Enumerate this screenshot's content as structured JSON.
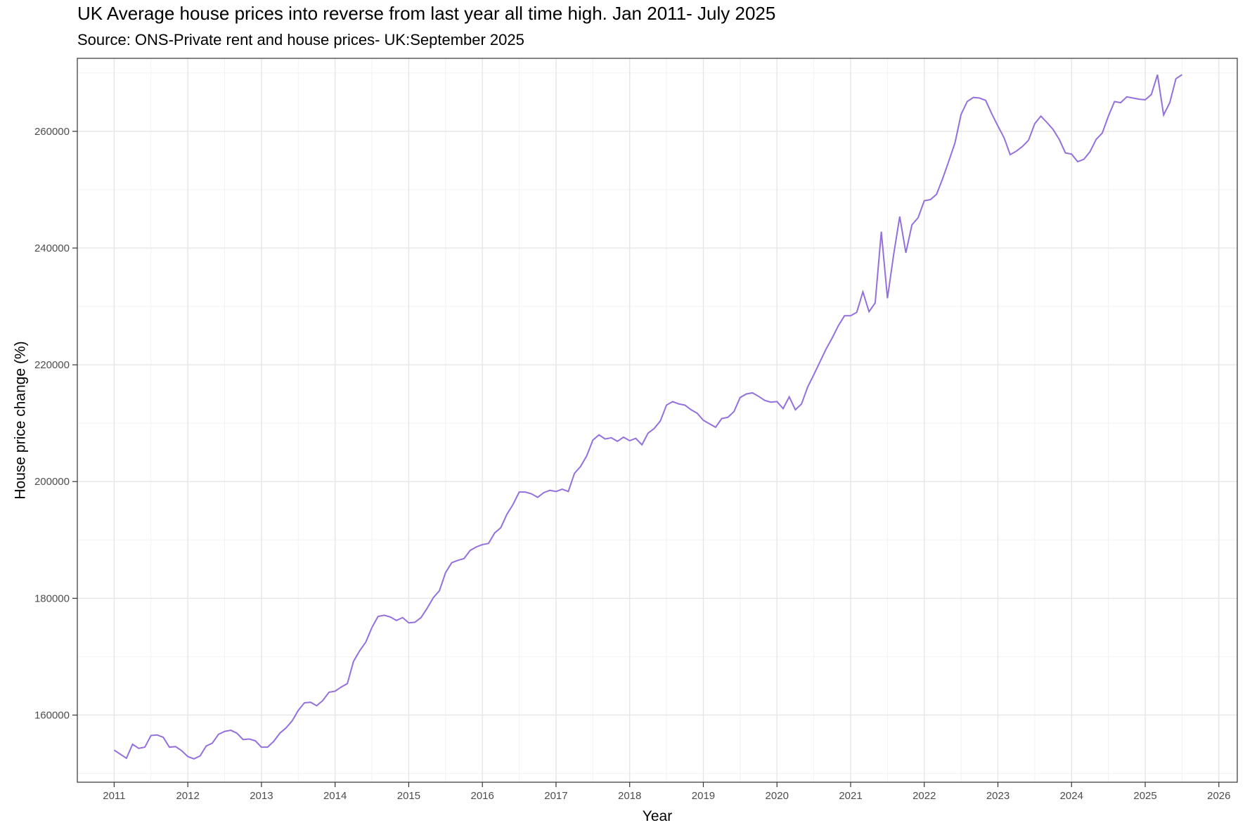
{
  "chart_data": {
    "type": "line",
    "title": "UK Average house prices into reverse from last year all time high. Jan 2011- July 2025",
    "subtitle": "Source: ONS-Private rent and house prices- UK:September 2025",
    "xlabel": "Year",
    "ylabel": "House price change (%)",
    "xlim": [
      2010.5,
      2026.25
    ],
    "ylim": [
      148500,
      272500
    ],
    "x_ticks": [
      2011,
      2012,
      2013,
      2014,
      2015,
      2016,
      2017,
      2018,
      2019,
      2020,
      2021,
      2022,
      2023,
      2024,
      2025,
      2026
    ],
    "y_ticks": [
      160000,
      180000,
      200000,
      220000,
      240000,
      260000
    ],
    "grid": true,
    "line_color": "#9370db",
    "series": [
      {
        "x_start": "2011-01",
        "frequency": "monthly",
        "values": [
          154000,
          153300,
          152600,
          155000,
          154300,
          154500,
          156500,
          156600,
          156200,
          154500,
          154600,
          153900,
          152900,
          152500,
          153000,
          154700,
          155200,
          156700,
          157200,
          157400,
          156900,
          155800,
          155900,
          155600,
          154500,
          154500,
          155500,
          156900,
          157800,
          159000,
          160800,
          162100,
          162200,
          161600,
          162500,
          163900,
          164100,
          164800,
          165400,
          169200,
          171000,
          172500,
          175000,
          176900,
          177100,
          176800,
          176200,
          176700,
          175800,
          175900,
          176700,
          178300,
          180100,
          181300,
          184400,
          186100,
          186500,
          186800,
          188200,
          188800,
          189200,
          189400,
          191200,
          192100,
          194400,
          196100,
          198200,
          198200,
          197900,
          197300,
          198100,
          198500,
          198300,
          198700,
          198300,
          201400,
          202600,
          204400,
          207100,
          208000,
          207300,
          207500,
          206900,
          207600,
          207000,
          207400,
          206300,
          208300,
          209100,
          210400,
          213100,
          213700,
          213300,
          213100,
          212300,
          211700,
          210500,
          209900,
          209300,
          210800,
          211000,
          212000,
          214400,
          215000,
          215200,
          214600,
          213900,
          213600,
          213700,
          212500,
          214500,
          212300,
          213300,
          216200,
          218300,
          220500,
          222700,
          224600,
          226700,
          228400,
          228400,
          229000,
          232500,
          229100,
          230600,
          242800,
          231400,
          238800,
          245400,
          239200,
          244000,
          245200,
          248100,
          248300,
          249200,
          251900,
          254900,
          258000,
          262900,
          265100,
          265800,
          265700,
          265300,
          263000,
          260900,
          258900,
          256000,
          256600,
          257400,
          258500,
          261300,
          262600,
          261500,
          260300,
          258600,
          256300,
          256100,
          254800,
          255200,
          256500,
          258600,
          259700,
          262600,
          265100,
          264900,
          265900,
          265700,
          265500,
          265400,
          266300,
          269700,
          262800,
          264900,
          269000,
          269700
        ]
      }
    ]
  }
}
